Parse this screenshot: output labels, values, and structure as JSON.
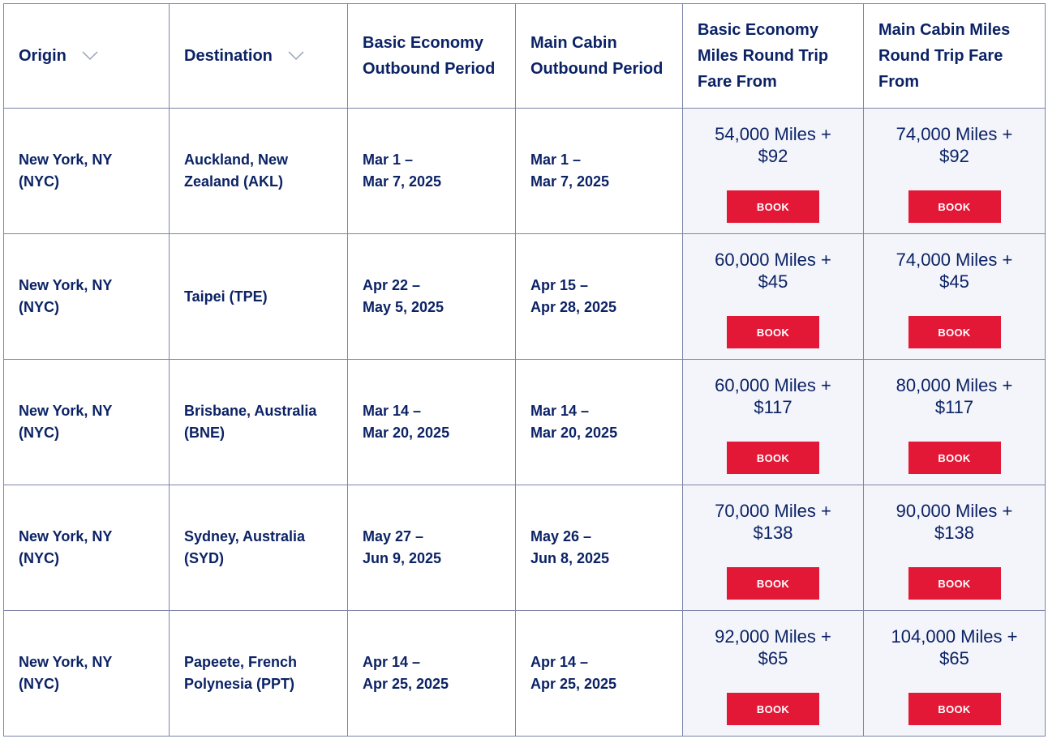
{
  "headers": {
    "origin": "Origin",
    "destination": "Destination",
    "basic_period": "Basic Economy Outbound Period",
    "main_period": "Main Cabin Outbound Period",
    "basic_fare": "Basic Economy Miles Round Trip Fare From",
    "main_fare": "Main Cabin Miles Round Trip Fare From"
  },
  "icons": {
    "sort": "chevron-down-icon"
  },
  "colors": {
    "text": "#0b2265",
    "book_button": "#e31837",
    "fare_bg": "#f4f5fa",
    "border": "#7d84a8"
  },
  "rows": [
    {
      "origin_1": "New York, NY",
      "origin_2": "(NYC)",
      "dest_1": "Auckland, New",
      "dest_2": "Zealand (AKL)",
      "basic_1": "Mar 1 –",
      "basic_2": "Mar 7, 2025",
      "main_1": "Mar 1 –",
      "main_2": "Mar 7, 2025",
      "basic_fare_1": "54,000 Miles +",
      "basic_fare_2": "$92",
      "main_fare_1": "74,000 Miles +",
      "main_fare_2": "$92",
      "book_label": "BOOK"
    },
    {
      "origin_1": "New York, NY",
      "origin_2": "(NYC)",
      "dest_1": "Taipei (TPE)",
      "dest_2": "",
      "basic_1": "Apr 22 –",
      "basic_2": "May 5, 2025",
      "main_1": "Apr 15 –",
      "main_2": "Apr 28, 2025",
      "basic_fare_1": "60,000 Miles +",
      "basic_fare_2": "$45",
      "main_fare_1": "74,000 Miles +",
      "main_fare_2": "$45",
      "book_label": "BOOK"
    },
    {
      "origin_1": "New York, NY",
      "origin_2": "(NYC)",
      "dest_1": "Brisbane, Australia",
      "dest_2": "(BNE)",
      "basic_1": "Mar 14 –",
      "basic_2": "Mar 20, 2025",
      "main_1": "Mar 14 –",
      "main_2": "Mar 20, 2025",
      "basic_fare_1": "60,000 Miles +",
      "basic_fare_2": "$117",
      "main_fare_1": "80,000 Miles +",
      "main_fare_2": "$117",
      "book_label": "BOOK"
    },
    {
      "origin_1": "New York, NY",
      "origin_2": "(NYC)",
      "dest_1": "Sydney, Australia",
      "dest_2": "(SYD)",
      "basic_1": "May 27 –",
      "basic_2": "Jun 9, 2025",
      "main_1": "May 26 –",
      "main_2": "Jun 8, 2025",
      "basic_fare_1": "70,000 Miles +",
      "basic_fare_2": "$138",
      "main_fare_1": "90,000 Miles +",
      "main_fare_2": "$138",
      "book_label": "BOOK"
    },
    {
      "origin_1": "New York, NY",
      "origin_2": "(NYC)",
      "dest_1": "Papeete, French",
      "dest_2": "Polynesia (PPT)",
      "basic_1": "Apr 14 –",
      "basic_2": "Apr 25, 2025",
      "main_1": "Apr 14 –",
      "main_2": "Apr 25, 2025",
      "basic_fare_1": "92,000 Miles +",
      "basic_fare_2": "$65",
      "main_fare_1": "104,000 Miles +",
      "main_fare_2": "$65",
      "book_label": "BOOK"
    }
  ]
}
